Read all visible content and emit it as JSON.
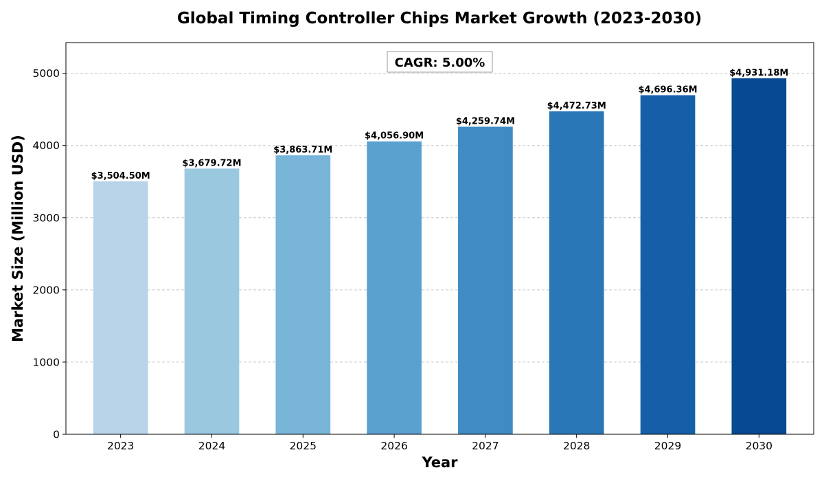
{
  "chart_data": {
    "type": "bar",
    "title": "Global Timing Controller Chips Market Growth (2023-2030)",
    "xlabel": "Year",
    "ylabel": "Market Size (Million USD)",
    "categories": [
      "2023",
      "2024",
      "2025",
      "2026",
      "2027",
      "2028",
      "2029",
      "2030"
    ],
    "values": [
      3504.5,
      3679.72,
      3863.71,
      4056.9,
      4259.74,
      4472.73,
      4696.36,
      4931.18
    ],
    "value_labels": [
      "$3,504.50M",
      "$3,679.72M",
      "$3,863.71M",
      "$4,056.90M",
      "$4,259.74M",
      "$4,472.73M",
      "$4,696.36M",
      "$4,931.18M"
    ],
    "ylim": [
      0,
      5425
    ],
    "yticks": [
      0,
      1000,
      2000,
      3000,
      4000,
      5000
    ],
    "ytick_labels": [
      "0",
      "1000",
      "2000",
      "3000",
      "4000",
      "5000"
    ],
    "grid": "y-dashed",
    "annotation": "CAGR: 5.00%",
    "colors": [
      "#b9d4e9",
      "#9ac8df",
      "#78b5d8",
      "#5aa1cf",
      "#3f8bc3",
      "#2a77b8",
      "#145fa8",
      "#084a91"
    ]
  }
}
